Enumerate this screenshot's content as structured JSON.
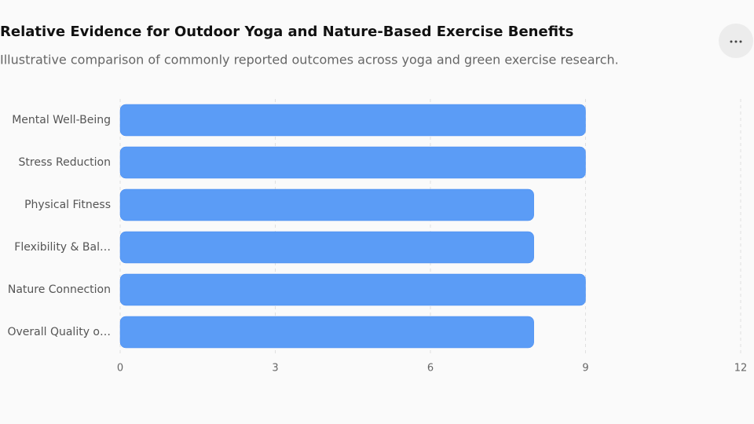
{
  "chart_data": {
    "type": "bar",
    "orientation": "horizontal",
    "title": "Relative Evidence for Outdoor Yoga and Nature-Based Exercise Benefits",
    "subtitle": "Illustrative comparison of commonly reported outcomes across yoga and green exercise research.",
    "categories": [
      "Mental Well-Being",
      "Stress Reduction",
      "Physical Fitness",
      "Flexibility & Bal…",
      "Nature Connection",
      "Overall Quality o…"
    ],
    "values": [
      9,
      9,
      8,
      8,
      9,
      8
    ],
    "color": "#5b9cf6",
    "xlim": [
      0,
      12
    ],
    "xticks": [
      0,
      3,
      6,
      9,
      12
    ],
    "grid": true
  }
}
